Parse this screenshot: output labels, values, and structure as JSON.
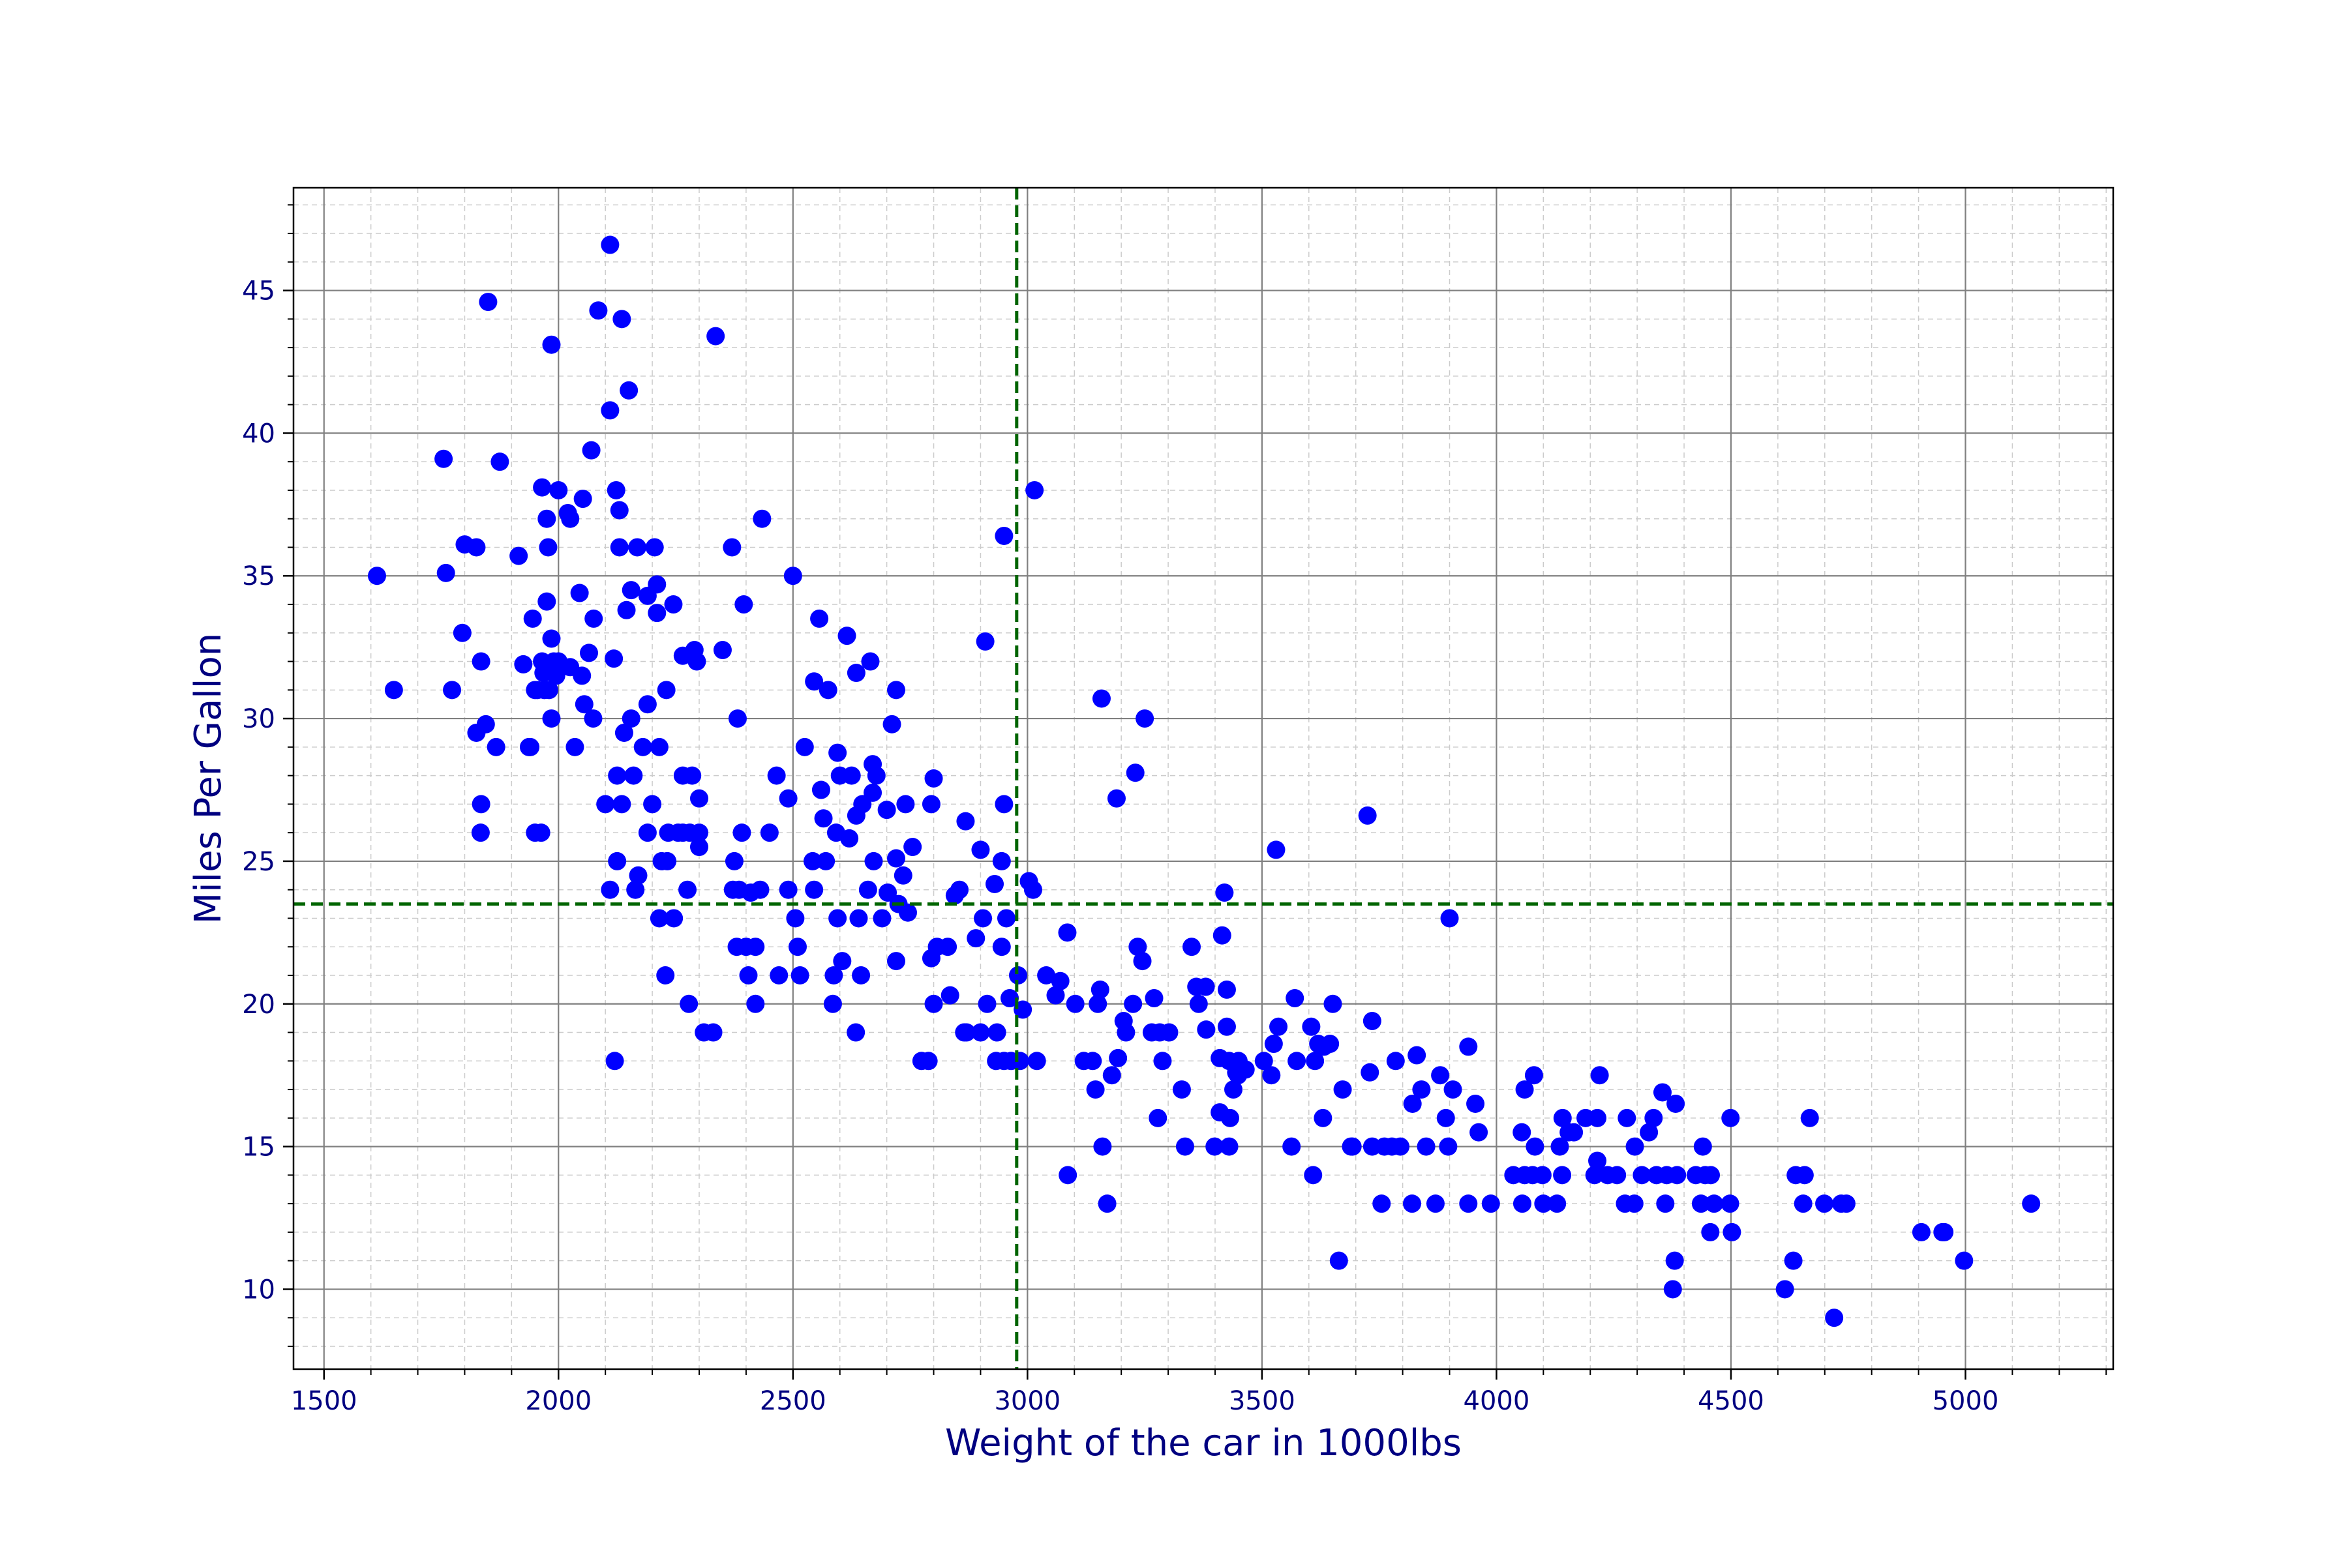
{
  "chart_data": {
    "type": "scatter",
    "title": "",
    "xlabel": "Weight of the car in 1000lbs",
    "ylabel": "Miles Per Gallon",
    "xlim": [
      1435,
      5315
    ],
    "ylim": [
      7.2,
      48.6
    ],
    "xticks": [
      1500,
      2000,
      2500,
      3000,
      3500,
      4000,
      4500,
      5000
    ],
    "yticks": [
      10,
      15,
      20,
      25,
      30,
      35,
      40,
      45
    ],
    "grid": true,
    "minor_grid": true,
    "legend": "none",
    "point_color": "#0000ff",
    "reference_color": "#006400",
    "reference_lines": {
      "x": 2977,
      "y": 23.5
    },
    "points": [
      [
        1613,
        35
      ],
      [
        1649,
        31
      ],
      [
        1755,
        39.1
      ],
      [
        1760,
        35.1
      ],
      [
        1773,
        31
      ],
      [
        1795,
        33
      ],
      [
        1800,
        36.1
      ],
      [
        1825,
        36
      ],
      [
        1825,
        29.5
      ],
      [
        1834,
        26
      ],
      [
        1835,
        27
      ],
      [
        1835,
        32
      ],
      [
        1845,
        29.8
      ],
      [
        1850,
        44.6
      ],
      [
        1867,
        29
      ],
      [
        1875,
        39
      ],
      [
        1915,
        35.7
      ],
      [
        1925,
        31.9
      ],
      [
        1937,
        29
      ],
      [
        1940,
        29
      ],
      [
        1945,
        33.5
      ],
      [
        1950,
        31
      ],
      [
        1950,
        26
      ],
      [
        1955,
        31
      ],
      [
        1963,
        26
      ],
      [
        1965,
        38.1
      ],
      [
        1965,
        32
      ],
      [
        1968,
        31.6
      ],
      [
        1970,
        31
      ],
      [
        1975,
        37
      ],
      [
        1975,
        34.1
      ],
      [
        1978,
        36
      ],
      [
        1980,
        31
      ],
      [
        1985,
        43.1
      ],
      [
        1985,
        30
      ],
      [
        1985,
        32.8
      ],
      [
        1990,
        32
      ],
      [
        1995,
        31.5
      ],
      [
        2000,
        38
      ],
      [
        2000,
        32
      ],
      [
        2003,
        31.9
      ],
      [
        2020,
        37.2
      ],
      [
        2025,
        31.8
      ],
      [
        2025,
        37
      ],
      [
        2035,
        29
      ],
      [
        2045,
        34.4
      ],
      [
        2050,
        31.5
      ],
      [
        2052,
        37.7
      ],
      [
        2055,
        30.5
      ],
      [
        2065,
        32.3
      ],
      [
        2070,
        39.4
      ],
      [
        2074,
        30
      ],
      [
        2075,
        33.5
      ],
      [
        2085,
        44.3
      ],
      [
        2100,
        27
      ],
      [
        2110,
        46.6
      ],
      [
        2110,
        40.8
      ],
      [
        2110,
        24
      ],
      [
        2118,
        32.1
      ],
      [
        2120,
        18
      ],
      [
        2123,
        38
      ],
      [
        2125,
        25
      ],
      [
        2125,
        28
      ],
      [
        2130,
        36
      ],
      [
        2130,
        37.3
      ],
      [
        2135,
        44
      ],
      [
        2135,
        27
      ],
      [
        2140,
        29.5
      ],
      [
        2145,
        33.8
      ],
      [
        2150,
        41.5
      ],
      [
        2155,
        34.5
      ],
      [
        2155,
        30
      ],
      [
        2160,
        28
      ],
      [
        2164,
        24
      ],
      [
        2168,
        36
      ],
      [
        2170,
        24.5
      ],
      [
        2180,
        29
      ],
      [
        2190,
        34.3
      ],
      [
        2190,
        30.5
      ],
      [
        2190,
        26
      ],
      [
        2200,
        27
      ],
      [
        2205,
        36
      ],
      [
        2210,
        34.7
      ],
      [
        2210,
        33.7
      ],
      [
        2215,
        29
      ],
      [
        2215,
        23
      ],
      [
        2220,
        25
      ],
      [
        2228,
        21
      ],
      [
        2230,
        31
      ],
      [
        2232,
        25
      ],
      [
        2234,
        26
      ],
      [
        2245,
        34
      ],
      [
        2246,
        23
      ],
      [
        2255,
        26
      ],
      [
        2265,
        28
      ],
      [
        2265,
        32.2
      ],
      [
        2265,
        26
      ],
      [
        2275,
        24
      ],
      [
        2278,
        20
      ],
      [
        2280,
        26
      ],
      [
        2285,
        28
      ],
      [
        2290,
        32.4
      ],
      [
        2295,
        32
      ],
      [
        2300,
        25.5
      ],
      [
        2300,
        27.2
      ],
      [
        2300,
        26
      ],
      [
        2310,
        19
      ],
      [
        2330,
        19
      ],
      [
        2335,
        43.4
      ],
      [
        2350,
        32.4
      ],
      [
        2370,
        36
      ],
      [
        2372,
        24
      ],
      [
        2375,
        25
      ],
      [
        2380,
        22
      ],
      [
        2382,
        30
      ],
      [
        2385,
        24
      ],
      [
        2391,
        26
      ],
      [
        2395,
        34
      ],
      [
        2400,
        22
      ],
      [
        2405,
        21
      ],
      [
        2410,
        23.9
      ],
      [
        2420,
        22
      ],
      [
        2420,
        20
      ],
      [
        2430,
        24
      ],
      [
        2434,
        37
      ],
      [
        2450,
        26
      ],
      [
        2465,
        28
      ],
      [
        2470,
        21
      ],
      [
        2490,
        24
      ],
      [
        2490,
        27.2
      ],
      [
        2500,
        35
      ],
      [
        2505,
        23
      ],
      [
        2510,
        22
      ],
      [
        2515,
        21
      ],
      [
        2525,
        29
      ],
      [
        2542,
        25
      ],
      [
        2545,
        31.3
      ],
      [
        2545,
        24
      ],
      [
        2556,
        33.5
      ],
      [
        2560,
        27.5
      ],
      [
        2565,
        26.5
      ],
      [
        2570,
        25
      ],
      [
        2575,
        31
      ],
      [
        2585,
        20
      ],
      [
        2587,
        21
      ],
      [
        2592,
        26
      ],
      [
        2595,
        28.8
      ],
      [
        2595,
        23
      ],
      [
        2600,
        28
      ],
      [
        2605,
        21.5
      ],
      [
        2615,
        32.9
      ],
      [
        2620,
        25.8
      ],
      [
        2625,
        28
      ],
      [
        2634,
        19
      ],
      [
        2635,
        31.6
      ],
      [
        2635,
        26.6
      ],
      [
        2640,
        23
      ],
      [
        2645,
        21
      ],
      [
        2648,
        27
      ],
      [
        2660,
        24
      ],
      [
        2665,
        32
      ],
      [
        2670,
        27.4
      ],
      [
        2670,
        28.4
      ],
      [
        2672,
        25
      ],
      [
        2678,
        28
      ],
      [
        2690,
        23
      ],
      [
        2700,
        26.8
      ],
      [
        2702,
        23.9
      ],
      [
        2711,
        29.8
      ],
      [
        2720,
        31
      ],
      [
        2720,
        25.1
      ],
      [
        2720,
        21.5
      ],
      [
        2725,
        23.5
      ],
      [
        2735,
        24.5
      ],
      [
        2740,
        27
      ],
      [
        2745,
        23.2
      ],
      [
        2755,
        25.5
      ],
      [
        2774,
        18
      ],
      [
        2789,
        18
      ],
      [
        2795,
        27
      ],
      [
        2795,
        21.6
      ],
      [
        2800,
        27.9
      ],
      [
        2800,
        20
      ],
      [
        2807,
        22
      ],
      [
        2830,
        22
      ],
      [
        2835,
        20.3
      ],
      [
        2845,
        23.8
      ],
      [
        2855,
        24
      ],
      [
        2865,
        19
      ],
      [
        2868,
        26.4
      ],
      [
        2870,
        19
      ],
      [
        2890,
        22.3
      ],
      [
        2900,
        25.4
      ],
      [
        2900,
        19
      ],
      [
        2905,
        23
      ],
      [
        2910,
        32.7
      ],
      [
        2914,
        20
      ],
      [
        2930,
        24.2
      ],
      [
        2933,
        18
      ],
      [
        2935,
        19
      ],
      [
        2945,
        22
      ],
      [
        2945,
        25
      ],
      [
        2950,
        36.4
      ],
      [
        2950,
        27
      ],
      [
        2950,
        18
      ],
      [
        2955,
        23
      ],
      [
        2962,
        20.2
      ],
      [
        2965,
        18
      ],
      [
        2980,
        21
      ],
      [
        2984,
        18
      ],
      [
        2990,
        19.8
      ],
      [
        3003,
        24.3
      ],
      [
        3012,
        24
      ],
      [
        3015,
        38
      ],
      [
        3020,
        18
      ],
      [
        3040,
        21
      ],
      [
        3060,
        20.3
      ],
      [
        3070,
        20.8
      ],
      [
        3085,
        22.5
      ],
      [
        3086,
        14
      ],
      [
        3102,
        20
      ],
      [
        3120,
        18
      ],
      [
        3139,
        18
      ],
      [
        3145,
        17
      ],
      [
        3150,
        20
      ],
      [
        3155,
        20.5
      ],
      [
        3158,
        30.7
      ],
      [
        3160,
        15
      ],
      [
        3170,
        13
      ],
      [
        3180,
        17.5
      ],
      [
        3190,
        27.2
      ],
      [
        3193,
        18.1
      ],
      [
        3205,
        19.4
      ],
      [
        3210,
        19
      ],
      [
        3225,
        20
      ],
      [
        3230,
        28.1
      ],
      [
        3235,
        22
      ],
      [
        3245,
        21.5
      ],
      [
        3250,
        30
      ],
      [
        3265,
        19
      ],
      [
        3270,
        20.2
      ],
      [
        3278,
        16
      ],
      [
        3282,
        19
      ],
      [
        3288,
        18
      ],
      [
        3302,
        19
      ],
      [
        3329,
        17
      ],
      [
        3336,
        15
      ],
      [
        3350,
        22
      ],
      [
        3360,
        20.6
      ],
      [
        3365,
        20
      ],
      [
        3380,
        20.6
      ],
      [
        3381,
        19.1
      ],
      [
        3399,
        15
      ],
      [
        3410,
        16.2
      ],
      [
        3410,
        18.1
      ],
      [
        3415,
        22.4
      ],
      [
        3420,
        23.9
      ],
      [
        3425,
        19.2
      ],
      [
        3425,
        20.5
      ],
      [
        3430,
        15
      ],
      [
        3430,
        18
      ],
      [
        3432,
        16
      ],
      [
        3439,
        17
      ],
      [
        3445,
        17.6
      ],
      [
        3449,
        17.5
      ],
      [
        3450,
        18
      ],
      [
        3465,
        17.7
      ],
      [
        3504,
        18
      ],
      [
        3520,
        17.5
      ],
      [
        3525,
        18.6
      ],
      [
        3530,
        25.4
      ],
      [
        3535,
        19.2
      ],
      [
        3563,
        15
      ],
      [
        3570,
        20.2
      ],
      [
        3574,
        18
      ],
      [
        3605,
        19.2
      ],
      [
        3609,
        14
      ],
      [
        3613,
        18
      ],
      [
        3620,
        18.6
      ],
      [
        3630,
        16
      ],
      [
        3632,
        18.5
      ],
      [
        3645,
        18.6
      ],
      [
        3651,
        20
      ],
      [
        3664,
        11
      ],
      [
        3672,
        17
      ],
      [
        3690,
        15
      ],
      [
        3693,
        15
      ],
      [
        3725,
        26.6
      ],
      [
        3730,
        17.6
      ],
      [
        3735,
        19.4
      ],
      [
        3735,
        15
      ],
      [
        3755,
        13
      ],
      [
        3761,
        15
      ],
      [
        3777,
        15
      ],
      [
        3785,
        18
      ],
      [
        3795,
        15
      ],
      [
        3820,
        13
      ],
      [
        3821,
        16.5
      ],
      [
        3830,
        18.2
      ],
      [
        3840,
        17
      ],
      [
        3850,
        15
      ],
      [
        3870,
        13
      ],
      [
        3880,
        17.5
      ],
      [
        3892,
        16
      ],
      [
        3897,
        15
      ],
      [
        3900,
        23
      ],
      [
        3907,
        17
      ],
      [
        3940,
        18.5
      ],
      [
        3940,
        13
      ],
      [
        3955,
        16.5
      ],
      [
        3962,
        15.5
      ],
      [
        3988,
        13
      ],
      [
        4036,
        14
      ],
      [
        4054,
        15.5
      ],
      [
        4055,
        13
      ],
      [
        4060,
        17
      ],
      [
        4060,
        14
      ],
      [
        4077,
        14
      ],
      [
        4080,
        17.5
      ],
      [
        4082,
        15
      ],
      [
        4098,
        14
      ],
      [
        4100,
        13
      ],
      [
        4129,
        13
      ],
      [
        4135,
        15
      ],
      [
        4140,
        14
      ],
      [
        4141,
        16
      ],
      [
        4154,
        15.5
      ],
      [
        4165,
        15.5
      ],
      [
        4190,
        16
      ],
      [
        4209,
        14
      ],
      [
        4215,
        14.5
      ],
      [
        4215,
        16
      ],
      [
        4220,
        17.5
      ],
      [
        4237,
        14
      ],
      [
        4257,
        14
      ],
      [
        4274,
        13
      ],
      [
        4278,
        16
      ],
      [
        4294,
        13
      ],
      [
        4295,
        15
      ],
      [
        4310,
        14
      ],
      [
        4325,
        15.5
      ],
      [
        4335,
        16
      ],
      [
        4341,
        14
      ],
      [
        4354,
        16.9
      ],
      [
        4360,
        13
      ],
      [
        4363,
        14
      ],
      [
        4376,
        10
      ],
      [
        4380,
        11
      ],
      [
        4382,
        16.5
      ],
      [
        4385,
        14
      ],
      [
        4425,
        14
      ],
      [
        4436,
        13
      ],
      [
        4440,
        15
      ],
      [
        4445,
        14
      ],
      [
        4456,
        12
      ],
      [
        4457,
        14
      ],
      [
        4464,
        13
      ],
      [
        4499,
        16
      ],
      [
        4498,
        13
      ],
      [
        4502,
        12
      ],
      [
        4615,
        10
      ],
      [
        4633,
        11
      ],
      [
        4638,
        14
      ],
      [
        4654,
        13
      ],
      [
        4657,
        14
      ],
      [
        4668,
        16
      ],
      [
        4699,
        13
      ],
      [
        4720,
        9
      ],
      [
        4735,
        13
      ],
      [
        4746,
        13
      ],
      [
        4906,
        12
      ],
      [
        4951,
        12
      ],
      [
        4955,
        12
      ],
      [
        4997,
        11
      ],
      [
        5140,
        13
      ]
    ]
  }
}
